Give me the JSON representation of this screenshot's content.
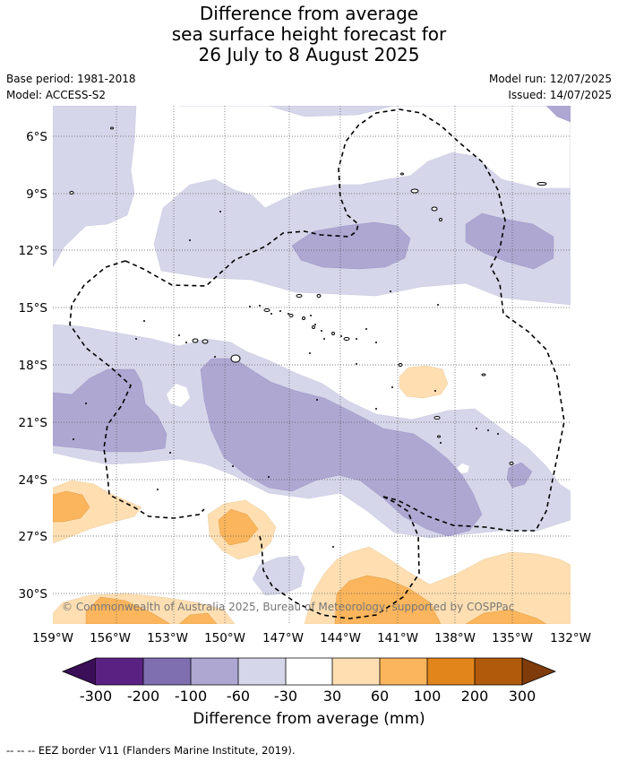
{
  "title": {
    "line1": "Difference from average",
    "line2": "sea surface height forecast for",
    "line3": "26 July to 8 August 2025"
  },
  "meta": {
    "base_period": "Base period: 1981-2018",
    "model": "Model: ACCESS-S2",
    "model_run": "Model run: 12/07/2025",
    "issued": "Issued: 14/07/2025"
  },
  "map": {
    "lon_range": [
      -159,
      -132
    ],
    "lat_range": [
      -31.6,
      -3.6
    ],
    "lon_ticks": [
      "159°W",
      "156°W",
      "153°W",
      "150°W",
      "147°W",
      "144°W",
      "141°W",
      "138°W",
      "135°W",
      "132°W"
    ],
    "lat_ticks": [
      "6°S",
      "9°S",
      "12°S",
      "15°S",
      "18°S",
      "21°S",
      "24°S",
      "27°S",
      "30°S"
    ],
    "copyright": "© Commonwealth of Australia 2025, Bureau of Meteorology, supported by COSPPac"
  },
  "colorbar": {
    "labels": [
      "-300",
      "-200",
      "-100",
      "-60",
      "-30",
      "30",
      "60",
      "100",
      "200",
      "300"
    ],
    "colors": [
      "#5b2182",
      "#7f6fb0",
      "#aea7d2",
      "#d6d6ea",
      "#ffffff",
      "#ffdfb2",
      "#fbb55c",
      "#e2851a",
      "#b15a0c"
    ],
    "under_color": "#3b0f57",
    "over_color": "#7f3b0a",
    "title": "Difference from average (mm)"
  },
  "footer": {
    "legend": "--  --  -- EEZ border V11 (Flanders Marine Institute, 2019)."
  }
}
